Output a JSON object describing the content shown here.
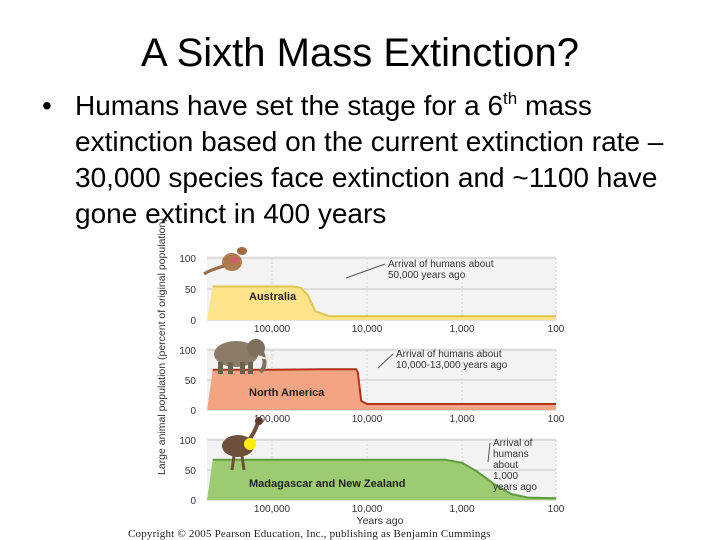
{
  "slide": {
    "title": "A Sixth Mass Extinction?",
    "bullet_before_sup": "Humans have set the stage for a 6",
    "bullet_sup": "th",
    "bullet_after_sup": " mass extinction based on the current extinction rate – 30,000 species face extinction and ~1100 have gone extinct in 400 years",
    "copyright": "Copyright © 2005 Pearson Education, Inc., publishing as Benjamin Cummings"
  },
  "chart_data": {
    "type": "area",
    "ylabel": "Large animal population (percent of original population)",
    "xlabel": "Years ago",
    "x_scale": "log",
    "x_ticks": [
      "100,000",
      "10,000",
      "1,000",
      "100"
    ],
    "x_tick_values": [
      100000,
      10000,
      1000,
      100
    ],
    "y_ticks": [
      "0",
      "50",
      "100"
    ],
    "ylim": [
      0,
      100
    ],
    "panels": [
      {
        "region": "Australia",
        "annotation": [
          "Arrival of humans about",
          "50,000 years ago"
        ],
        "fill_color": "#fde48a",
        "line_color": "#e2c44c",
        "animal": "kangaroo-icon",
        "x": [
          200000,
          100000,
          60000,
          50000,
          42000,
          35000,
          25000,
          10000,
          1000,
          100
        ],
        "y": [
          54,
          54,
          54,
          52,
          40,
          14,
          6,
          6,
          6,
          6
        ]
      },
      {
        "region": "North America",
        "annotation": [
          "Arrival of humans about",
          "10,000-13,000 years ago"
        ],
        "fill_color": "#f3a583",
        "line_color": "#b0331a",
        "animal": "mammoth-icon",
        "x": [
          200000,
          100000,
          30000,
          13000,
          12500,
          11500,
          10000,
          1000,
          100
        ],
        "y": [
          67,
          67,
          68,
          68,
          63,
          15,
          10,
          10,
          10
        ]
      },
      {
        "region": "Madagascar and New Zealand",
        "annotation": [
          "Arrival of",
          "humans",
          "about",
          "1,000",
          "years ago"
        ],
        "fill_color": "#9ccb72",
        "line_color": "#5d9c3a",
        "animal": "moa-icon",
        "x": [
          200000,
          100000,
          10000,
          1500,
          1000,
          700,
          450,
          300,
          200,
          100
        ],
        "y": [
          67,
          67,
          67,
          67,
          62,
          48,
          26,
          10,
          4,
          3
        ]
      }
    ]
  }
}
